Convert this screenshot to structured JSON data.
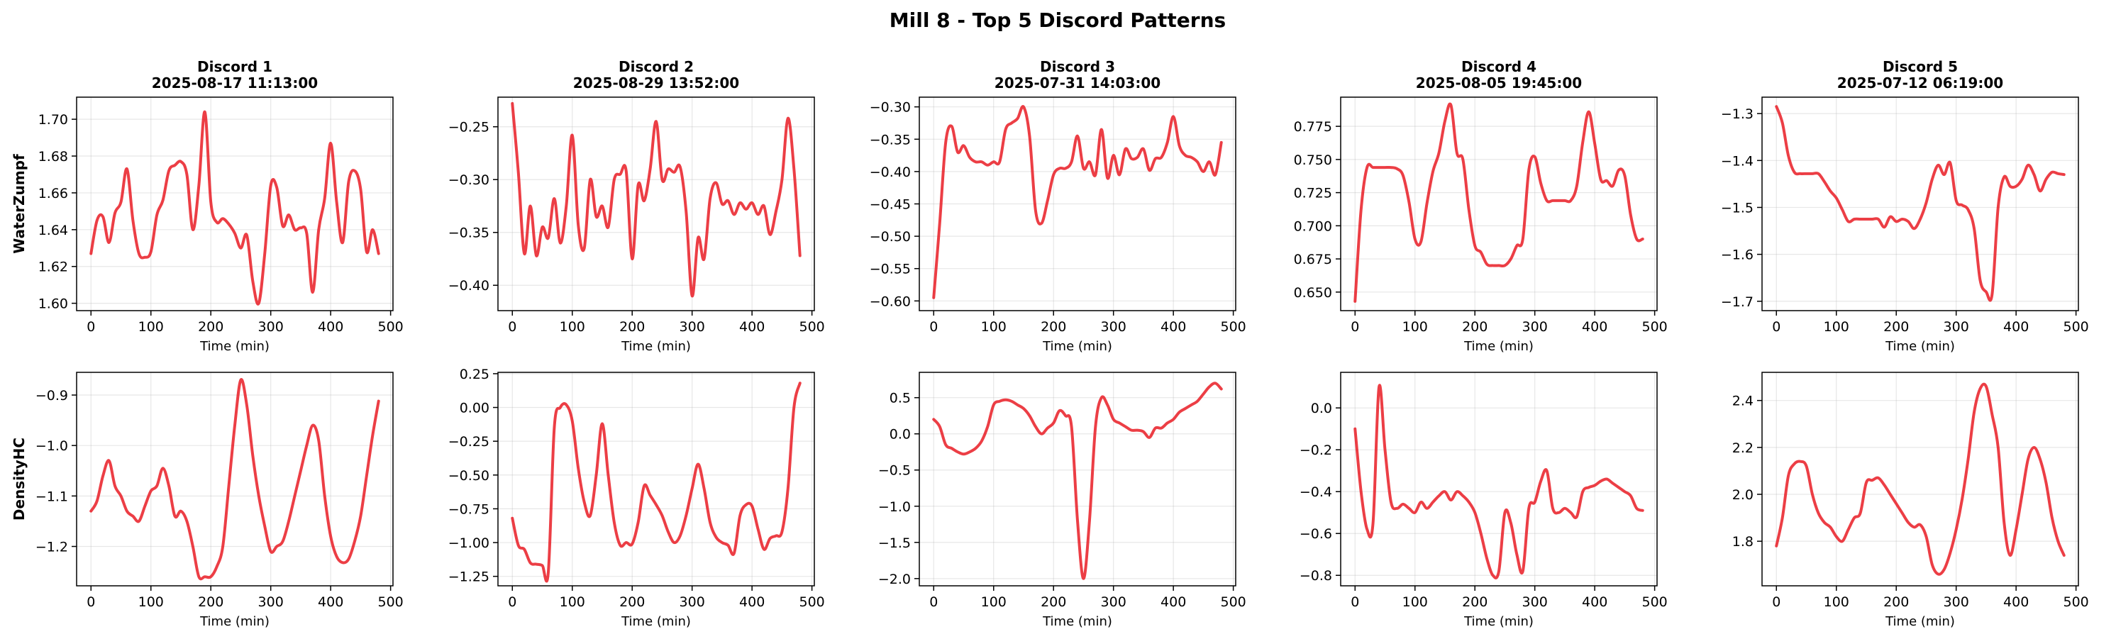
{
  "suptitle": "Mill 8 - Top 5 Discord Patterns",
  "chart_data": {
    "type": "line",
    "line_color": "#e8141c",
    "xlabel": "Time (min)",
    "xlim": [
      -24,
      504
    ],
    "xticks": [
      0,
      100,
      200,
      300,
      400,
      500
    ],
    "grid": true,
    "rows": [
      {
        "ylabel": "WaterZumpf"
      },
      {
        "ylabel": "DensityHC"
      }
    ],
    "columns": [
      {
        "title": "Discord 1\n2025-08-17 11:13:00"
      },
      {
        "title": "Discord 2\n2025-08-29 13:52:00"
      },
      {
        "title": "Discord 3\n2025-07-31 14:03:00"
      },
      {
        "title": "Discord 4\n2025-08-05 19:45:00"
      },
      {
        "title": "Discord 5\n2025-07-12 06:19:00"
      }
    ],
    "panels": [
      {
        "row": 0,
        "col": 0,
        "ylim": [
          1.596,
          1.712
        ],
        "yticks": [
          1.6,
          1.62,
          1.64,
          1.66,
          1.68,
          1.7
        ],
        "ydecimals": 2,
        "x": [
          0,
          10,
          20,
          30,
          40,
          50,
          60,
          70,
          80,
          90,
          100,
          110,
          120,
          130,
          140,
          150,
          160,
          170,
          180,
          190,
          200,
          210,
          220,
          230,
          240,
          250,
          260,
          270,
          280,
          290,
          300,
          310,
          320,
          330,
          340,
          350,
          360,
          370,
          380,
          390,
          400,
          410,
          420,
          430,
          440,
          450,
          460,
          470,
          480
        ],
        "y": [
          1.627,
          1.645,
          1.647,
          1.633,
          1.649,
          1.655,
          1.673,
          1.645,
          1.627,
          1.625,
          1.628,
          1.648,
          1.656,
          1.672,
          1.675,
          1.677,
          1.67,
          1.64,
          1.664,
          1.704,
          1.655,
          1.644,
          1.646,
          1.643,
          1.638,
          1.63,
          1.637,
          1.612,
          1.6,
          1.627,
          1.664,
          1.663,
          1.642,
          1.648,
          1.64,
          1.641,
          1.638,
          1.606,
          1.64,
          1.657,
          1.687,
          1.655,
          1.633,
          1.666,
          1.672,
          1.662,
          1.628,
          1.64,
          1.627
        ]
      },
      {
        "row": 0,
        "col": 1,
        "ylim": [
          -0.424,
          -0.222
        ],
        "yticks": [
          -0.25,
          -0.3,
          -0.35,
          -0.4
        ],
        "ydecimals": 2,
        "x": [
          0,
          10,
          20,
          30,
          40,
          50,
          60,
          70,
          80,
          90,
          100,
          110,
          120,
          130,
          140,
          150,
          160,
          170,
          180,
          190,
          200,
          210,
          220,
          230,
          240,
          250,
          260,
          270,
          280,
          290,
          300,
          310,
          320,
          330,
          340,
          350,
          360,
          370,
          380,
          390,
          400,
          410,
          420,
          430,
          440,
          450,
          460,
          470,
          480
        ],
        "y": [
          -0.228,
          -0.293,
          -0.37,
          -0.325,
          -0.372,
          -0.345,
          -0.355,
          -0.318,
          -0.36,
          -0.325,
          -0.258,
          -0.343,
          -0.365,
          -0.3,
          -0.335,
          -0.325,
          -0.345,
          -0.3,
          -0.295,
          -0.292,
          -0.375,
          -0.305,
          -0.32,
          -0.29,
          -0.245,
          -0.3,
          -0.29,
          -0.293,
          -0.288,
          -0.33,
          -0.41,
          -0.355,
          -0.375,
          -0.318,
          -0.303,
          -0.323,
          -0.32,
          -0.333,
          -0.322,
          -0.328,
          -0.322,
          -0.333,
          -0.325,
          -0.352,
          -0.33,
          -0.3,
          -0.242,
          -0.29,
          -0.372
        ]
      },
      {
        "row": 0,
        "col": 2,
        "ylim": [
          -0.615,
          -0.285
        ],
        "yticks": [
          -0.3,
          -0.35,
          -0.4,
          -0.45,
          -0.5,
          -0.55,
          -0.6
        ],
        "ydecimals": 2,
        "x": [
          0,
          10,
          20,
          30,
          40,
          50,
          60,
          70,
          80,
          90,
          100,
          110,
          120,
          130,
          140,
          150,
          160,
          170,
          180,
          190,
          200,
          210,
          220,
          230,
          240,
          250,
          260,
          270,
          280,
          290,
          300,
          310,
          320,
          330,
          340,
          350,
          360,
          370,
          380,
          390,
          400,
          410,
          420,
          430,
          440,
          450,
          460,
          470,
          480
        ],
        "y": [
          -0.595,
          -0.48,
          -0.355,
          -0.33,
          -0.37,
          -0.36,
          -0.378,
          -0.385,
          -0.385,
          -0.39,
          -0.385,
          -0.385,
          -0.335,
          -0.325,
          -0.318,
          -0.3,
          -0.345,
          -0.46,
          -0.48,
          -0.445,
          -0.405,
          -0.395,
          -0.395,
          -0.385,
          -0.345,
          -0.395,
          -0.385,
          -0.405,
          -0.335,
          -0.41,
          -0.375,
          -0.405,
          -0.365,
          -0.38,
          -0.378,
          -0.365,
          -0.398,
          -0.38,
          -0.378,
          -0.355,
          -0.315,
          -0.36,
          -0.375,
          -0.378,
          -0.385,
          -0.4,
          -0.385,
          -0.405,
          -0.355
        ]
      },
      {
        "row": 0,
        "col": 3,
        "ylim": [
          0.636,
          0.797
        ],
        "yticks": [
          0.65,
          0.675,
          0.7,
          0.725,
          0.75,
          0.775
        ],
        "ydecimals": 3,
        "x": [
          0,
          10,
          20,
          30,
          40,
          50,
          60,
          70,
          80,
          90,
          100,
          110,
          120,
          130,
          140,
          150,
          160,
          170,
          180,
          190,
          200,
          210,
          220,
          230,
          240,
          250,
          260,
          270,
          280,
          290,
          300,
          310,
          320,
          330,
          340,
          350,
          360,
          370,
          380,
          390,
          400,
          410,
          420,
          430,
          440,
          450,
          460,
          470,
          480
        ],
        "y": [
          0.643,
          0.712,
          0.744,
          0.744,
          0.744,
          0.744,
          0.744,
          0.743,
          0.738,
          0.718,
          0.69,
          0.688,
          0.717,
          0.741,
          0.755,
          0.779,
          0.791,
          0.755,
          0.75,
          0.712,
          0.685,
          0.68,
          0.671,
          0.67,
          0.67,
          0.67,
          0.675,
          0.685,
          0.69,
          0.742,
          0.752,
          0.732,
          0.719,
          0.719,
          0.719,
          0.719,
          0.719,
          0.73,
          0.763,
          0.786,
          0.762,
          0.735,
          0.734,
          0.73,
          0.742,
          0.738,
          0.708,
          0.69,
          0.69
        ]
      },
      {
        "row": 0,
        "col": 4,
        "ylim": [
          -1.72,
          -1.265
        ],
        "yticks": [
          -1.3,
          -1.4,
          -1.5,
          -1.6,
          -1.7
        ],
        "ydecimals": 1,
        "x": [
          0,
          10,
          20,
          30,
          40,
          50,
          60,
          70,
          80,
          90,
          100,
          110,
          120,
          130,
          140,
          150,
          160,
          170,
          180,
          190,
          200,
          210,
          220,
          230,
          240,
          250,
          260,
          270,
          280,
          290,
          300,
          310,
          320,
          330,
          340,
          350,
          360,
          370,
          380,
          390,
          400,
          410,
          420,
          430,
          440,
          450,
          460,
          470,
          480
        ],
        "y": [
          -1.285,
          -1.32,
          -1.39,
          -1.425,
          -1.428,
          -1.428,
          -1.428,
          -1.428,
          -1.445,
          -1.465,
          -1.48,
          -1.505,
          -1.53,
          -1.525,
          -1.525,
          -1.525,
          -1.525,
          -1.525,
          -1.542,
          -1.52,
          -1.53,
          -1.525,
          -1.53,
          -1.545,
          -1.525,
          -1.49,
          -1.44,
          -1.41,
          -1.43,
          -1.405,
          -1.485,
          -1.495,
          -1.505,
          -1.545,
          -1.655,
          -1.68,
          -1.685,
          -1.5,
          -1.435,
          -1.455,
          -1.455,
          -1.44,
          -1.41,
          -1.43,
          -1.465,
          -1.44,
          -1.425,
          -1.428,
          -1.43
        ]
      },
      {
        "row": 1,
        "col": 0,
        "ylim": [
          -1.278,
          -0.855
        ],
        "yticks": [
          -0.9,
          -1.0,
          -1.1,
          -1.2
        ],
        "ydecimals": 1,
        "x": [
          0,
          10,
          20,
          30,
          40,
          50,
          60,
          70,
          80,
          90,
          100,
          110,
          120,
          130,
          140,
          150,
          160,
          170,
          180,
          190,
          200,
          210,
          220,
          230,
          240,
          250,
          260,
          270,
          280,
          290,
          300,
          310,
          320,
          330,
          340,
          350,
          360,
          370,
          380,
          390,
          400,
          410,
          420,
          430,
          440,
          450,
          460,
          470,
          480
        ],
        "y": [
          -1.13,
          -1.11,
          -1.06,
          -1.03,
          -1.08,
          -1.1,
          -1.13,
          -1.14,
          -1.15,
          -1.12,
          -1.09,
          -1.08,
          -1.045,
          -1.08,
          -1.14,
          -1.13,
          -1.15,
          -1.2,
          -1.26,
          -1.26,
          -1.26,
          -1.24,
          -1.2,
          -1.08,
          -0.96,
          -0.87,
          -0.92,
          -1.02,
          -1.1,
          -1.16,
          -1.21,
          -1.2,
          -1.19,
          -1.15,
          -1.1,
          -1.05,
          -1.0,
          -0.96,
          -0.99,
          -1.1,
          -1.18,
          -1.22,
          -1.232,
          -1.225,
          -1.19,
          -1.14,
          -1.06,
          -0.98,
          -0.912
        ]
      },
      {
        "row": 1,
        "col": 1,
        "ylim": [
          -1.32,
          0.26
        ],
        "yticks": [
          0.25,
          0.0,
          -0.25,
          -0.5,
          -0.75,
          -1.0,
          -1.25
        ],
        "ydecimals": 2,
        "x": [
          0,
          10,
          20,
          30,
          40,
          50,
          60,
          70,
          80,
          90,
          100,
          110,
          120,
          130,
          140,
          150,
          160,
          170,
          180,
          190,
          200,
          210,
          220,
          230,
          240,
          250,
          260,
          270,
          280,
          290,
          300,
          310,
          320,
          330,
          340,
          350,
          360,
          370,
          380,
          390,
          400,
          410,
          420,
          430,
          440,
          450,
          460,
          470,
          480
        ],
        "y": [
          -0.82,
          -1.02,
          -1.05,
          -1.15,
          -1.16,
          -1.17,
          -1.22,
          -0.15,
          0.0,
          0.02,
          -0.1,
          -0.45,
          -0.7,
          -0.8,
          -0.5,
          -0.12,
          -0.5,
          -0.85,
          -1.02,
          -1.0,
          -1.01,
          -0.85,
          -0.58,
          -0.65,
          -0.72,
          -0.8,
          -0.92,
          -1.0,
          -0.95,
          -0.8,
          -0.6,
          -0.42,
          -0.6,
          -0.85,
          -0.96,
          -1.0,
          -1.02,
          -1.08,
          -0.8,
          -0.72,
          -0.73,
          -0.9,
          -1.05,
          -0.97,
          -0.95,
          -0.92,
          -0.6,
          0.0,
          0.18
        ]
      },
      {
        "row": 1,
        "col": 2,
        "ylim": [
          -2.1,
          0.85
        ],
        "yticks": [
          0.5,
          0.0,
          -0.5,
          -1.0,
          -1.5,
          -2.0
        ],
        "ydecimals": 1,
        "x": [
          0,
          10,
          20,
          30,
          40,
          50,
          60,
          70,
          80,
          90,
          100,
          110,
          120,
          130,
          140,
          150,
          160,
          170,
          180,
          190,
          200,
          210,
          220,
          230,
          240,
          250,
          260,
          270,
          280,
          290,
          300,
          310,
          320,
          330,
          340,
          350,
          360,
          370,
          380,
          390,
          400,
          410,
          420,
          430,
          440,
          450,
          460,
          470,
          480
        ],
        "y": [
          0.2,
          0.1,
          -0.15,
          -0.2,
          -0.25,
          -0.28,
          -0.25,
          -0.2,
          -0.1,
          0.1,
          0.4,
          0.45,
          0.47,
          0.45,
          0.4,
          0.35,
          0.25,
          0.1,
          0.0,
          0.08,
          0.15,
          0.32,
          0.25,
          0.1,
          -1.2,
          -2.0,
          -1.2,
          0.1,
          0.5,
          0.4,
          0.2,
          0.15,
          0.1,
          0.05,
          0.05,
          0.03,
          -0.05,
          0.08,
          0.08,
          0.15,
          0.2,
          0.3,
          0.35,
          0.4,
          0.45,
          0.55,
          0.65,
          0.7,
          0.62
        ]
      },
      {
        "row": 1,
        "col": 3,
        "ylim": [
          -0.85,
          0.17
        ],
        "yticks": [
          0.0,
          -0.2,
          -0.4,
          -0.6,
          -0.8
        ],
        "ydecimals": 1,
        "x": [
          0,
          10,
          20,
          30,
          40,
          50,
          60,
          70,
          80,
          90,
          100,
          110,
          120,
          130,
          140,
          150,
          160,
          170,
          180,
          190,
          200,
          210,
          220,
          230,
          240,
          250,
          260,
          270,
          280,
          290,
          300,
          310,
          320,
          330,
          340,
          350,
          360,
          370,
          380,
          390,
          400,
          410,
          420,
          430,
          440,
          450,
          460,
          470,
          480
        ],
        "y": [
          -0.1,
          -0.4,
          -0.58,
          -0.55,
          0.1,
          -0.2,
          -0.45,
          -0.48,
          -0.46,
          -0.48,
          -0.5,
          -0.45,
          -0.48,
          -0.45,
          -0.42,
          -0.4,
          -0.44,
          -0.4,
          -0.42,
          -0.45,
          -0.5,
          -0.6,
          -0.72,
          -0.8,
          -0.78,
          -0.5,
          -0.55,
          -0.7,
          -0.78,
          -0.48,
          -0.45,
          -0.35,
          -0.3,
          -0.48,
          -0.5,
          -0.48,
          -0.5,
          -0.52,
          -0.4,
          -0.38,
          -0.37,
          -0.35,
          -0.34,
          -0.36,
          -0.38,
          -0.4,
          -0.42,
          -0.48,
          -0.49
        ]
      },
      {
        "row": 1,
        "col": 4,
        "ylim": [
          1.61,
          2.52
        ],
        "yticks": [
          2.4,
          2.2,
          2.0,
          1.8
        ],
        "ydecimals": 1,
        "x": [
          0,
          10,
          20,
          30,
          40,
          50,
          60,
          70,
          80,
          90,
          100,
          110,
          120,
          130,
          140,
          150,
          160,
          170,
          180,
          190,
          200,
          210,
          220,
          230,
          240,
          250,
          260,
          270,
          280,
          290,
          300,
          310,
          320,
          330,
          340,
          350,
          360,
          370,
          380,
          390,
          400,
          410,
          420,
          430,
          440,
          450,
          460,
          470,
          480
        ],
        "y": [
          1.78,
          1.9,
          2.08,
          2.13,
          2.14,
          2.12,
          2.0,
          1.92,
          1.88,
          1.86,
          1.82,
          1.8,
          1.85,
          1.9,
          1.92,
          2.05,
          2.06,
          2.07,
          2.04,
          2.0,
          1.96,
          1.92,
          1.88,
          1.86,
          1.87,
          1.82,
          1.7,
          1.66,
          1.68,
          1.75,
          1.85,
          1.98,
          2.15,
          2.35,
          2.45,
          2.46,
          2.34,
          2.2,
          1.88,
          1.74,
          1.85,
          2.0,
          2.15,
          2.2,
          2.15,
          2.05,
          1.9,
          1.8,
          1.74
        ]
      }
    ]
  }
}
